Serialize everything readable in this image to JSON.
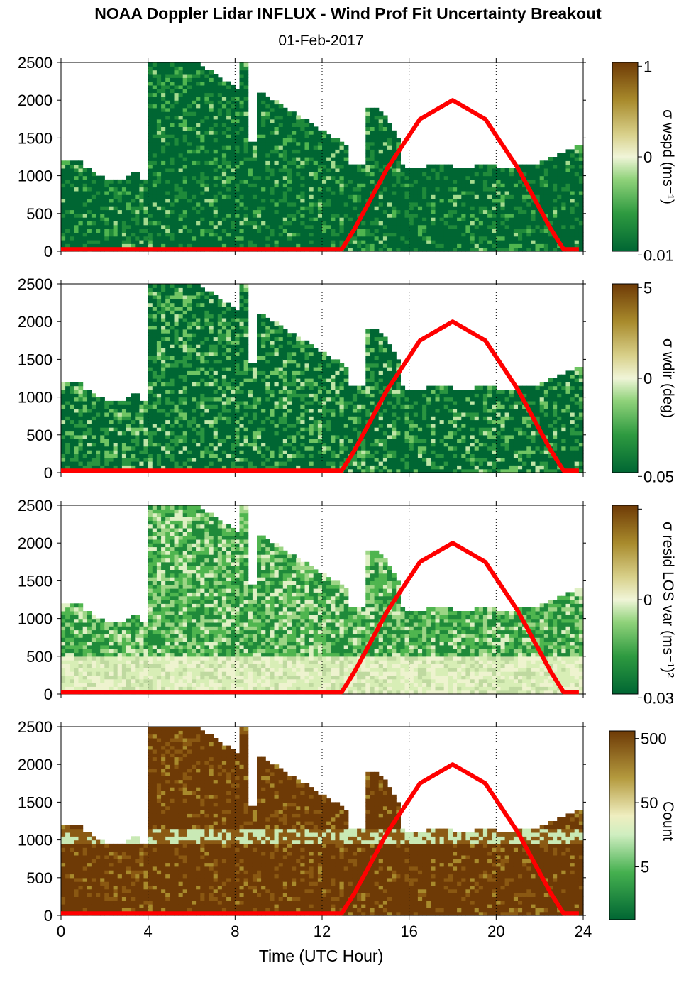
{
  "title": "NOAA Doppler Lidar INFLUX - Wind Prof Fit Uncertainty Breakout",
  "subtitle": "01-Feb-2017",
  "xlabel": "Time (UTC Hour)",
  "colors": {
    "sun_curve": "#ff0000",
    "dark_green": "#006633",
    "pale": "#f0f5d8",
    "dark_brown": "#6e3a06"
  },
  "chart_data": [
    {
      "type": "heatmap",
      "panel": 1,
      "ylabel": "",
      "xlim": [
        0,
        24
      ],
      "ylim": [
        0,
        2500
      ],
      "x_ticks": [
        "0",
        "4",
        "8",
        "12",
        "16",
        "20",
        "24"
      ],
      "y_ticks": [
        "0",
        "500",
        "1000",
        "1500",
        "2000",
        "2500"
      ],
      "colorbar": {
        "label": "σ wspd (ms⁻¹)",
        "ticks": [
          "1",
          "0",
          "0.01"
        ]
      },
      "sun_elevation_curve": {
        "x": [
          0,
          12.9,
          13.5,
          15,
          16.5,
          18,
          19.5,
          21,
          22.5,
          23.1,
          23.8
        ],
        "y": [
          25,
          25,
          300,
          1100,
          1750,
          2000,
          1750,
          1100,
          300,
          25,
          25
        ]
      }
    },
    {
      "type": "heatmap",
      "panel": 2,
      "ylabel": "",
      "xlim": [
        0,
        24
      ],
      "ylim": [
        0,
        2500
      ],
      "x_ticks": [
        "0",
        "4",
        "8",
        "12",
        "16",
        "20",
        "24"
      ],
      "y_ticks": [
        "0",
        "500",
        "1000",
        "1500",
        "2000",
        "2500"
      ],
      "colorbar": {
        "label": "σ wdir (deg)",
        "ticks": [
          "5",
          "0",
          "0.05"
        ]
      },
      "sun_elevation_curve": {
        "x": [
          0,
          12.9,
          13.5,
          15,
          16.5,
          18,
          19.5,
          21,
          22.5,
          23.1,
          23.8
        ],
        "y": [
          25,
          25,
          300,
          1100,
          1750,
          2000,
          1750,
          1100,
          300,
          25,
          25
        ]
      }
    },
    {
      "type": "heatmap",
      "panel": 3,
      "ylabel": "",
      "xlim": [
        0,
        24
      ],
      "ylim": [
        0,
        2500
      ],
      "x_ticks": [
        "0",
        "4",
        "8",
        "12",
        "16",
        "20",
        "24"
      ],
      "y_ticks": [
        "0",
        "500",
        "1000",
        "1500",
        "2000",
        "2500"
      ],
      "colorbar": {
        "label": "σ resid LOS var (ms⁻¹)²",
        "ticks": [
          "",
          "0",
          "0.03"
        ]
      },
      "sun_elevation_curve": {
        "x": [
          0,
          12.9,
          13.5,
          15,
          16.5,
          18,
          19.5,
          21,
          22.5,
          23.1,
          23.8
        ],
        "y": [
          25,
          25,
          300,
          1100,
          1750,
          2000,
          1750,
          1100,
          300,
          25,
          25
        ]
      }
    },
    {
      "type": "heatmap",
      "panel": 4,
      "ylabel": "",
      "xlim": [
        0,
        24
      ],
      "ylim": [
        0,
        2500
      ],
      "x_ticks": [
        "0",
        "4",
        "8",
        "12",
        "16",
        "20",
        "24"
      ],
      "y_ticks": [
        "0",
        "500",
        "1000",
        "1500",
        "2000",
        "2500"
      ],
      "colorbar": {
        "label": "Count",
        "ticks": [
          "500",
          "50",
          "5"
        ]
      },
      "sun_elevation_curve": {
        "x": [
          0,
          12.9,
          13.5,
          15,
          16.5,
          18,
          19.5,
          21,
          22.5,
          23.1,
          23.8
        ],
        "y": [
          25,
          25,
          300,
          1100,
          1750,
          2000,
          1750,
          1100,
          300,
          25,
          25
        ]
      }
    }
  ]
}
